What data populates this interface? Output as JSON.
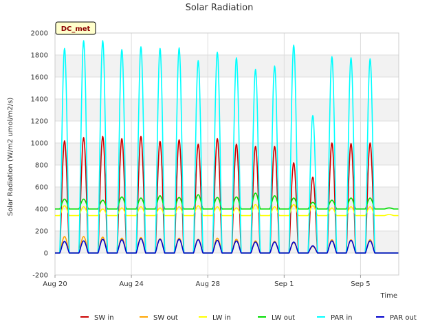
{
  "chart_data": {
    "type": "line",
    "title": "Solar Radiation",
    "xlabel": "Time",
    "ylabel": "Solar Radiation (W/m2 umol/m2/s)",
    "badge": "DC_met",
    "x_start": "2023-08-20",
    "x_end": "2023-09-07",
    "ylim": [
      -200,
      2000
    ],
    "yticks": [
      -200,
      0,
      200,
      400,
      600,
      800,
      1000,
      1200,
      1400,
      1600,
      1800,
      2000
    ],
    "xticks": [
      {
        "value": "2023-08-20",
        "label": "Aug 20"
      },
      {
        "value": "2023-08-24",
        "label": "Aug 24"
      },
      {
        "value": "2023-08-28",
        "label": "Aug 28"
      },
      {
        "value": "2023-09-01",
        "label": "Sep 1"
      },
      {
        "value": "2023-09-05",
        "label": "Sep 5"
      }
    ],
    "grid": true,
    "legend_position": "bottom",
    "days": [
      "2023-08-20",
      "2023-08-21",
      "2023-08-22",
      "2023-08-23",
      "2023-08-24",
      "2023-08-25",
      "2023-08-26",
      "2023-08-27",
      "2023-08-28",
      "2023-08-29",
      "2023-08-30",
      "2023-08-31",
      "2023-09-01",
      "2023-09-02",
      "2023-09-03",
      "2023-09-04",
      "2023-09-05",
      "2023-09-06"
    ],
    "series": [
      {
        "name": "SW in",
        "color": "#cc0000",
        "night": 0,
        "daily_peak": [
          1020,
          1050,
          1060,
          1040,
          1060,
          1015,
          1030,
          990,
          1040,
          990,
          970,
          970,
          820,
          690,
          1000,
          995,
          1000,
          0
        ]
      },
      {
        "name": "SW out",
        "color": "#ffa500",
        "night": 0,
        "daily_peak": [
          150,
          150,
          145,
          135,
          140,
          130,
          135,
          125,
          135,
          125,
          110,
          105,
          95,
          60,
          120,
          120,
          120,
          0
        ]
      },
      {
        "name": "LW in",
        "color": "#ffff00",
        "night": 340,
        "daily_peak": [
          430,
          420,
          400,
          410,
          420,
          410,
          420,
          430,
          420,
          410,
          440,
          420,
          440,
          430,
          410,
          420,
          420,
          350
        ]
      },
      {
        "name": "LW out",
        "color": "#00dd00",
        "night": 400,
        "daily_peak": [
          490,
          490,
          480,
          510,
          500,
          520,
          505,
          530,
          505,
          510,
          545,
          520,
          500,
          460,
          480,
          500,
          500,
          410
        ]
      },
      {
        "name": "PAR in",
        "color": "#00ffff",
        "night": 0,
        "daily_peak": [
          1860,
          1930,
          1930,
          1850,
          1875,
          1860,
          1865,
          1750,
          1825,
          1775,
          1670,
          1700,
          1890,
          1250,
          1785,
          1775,
          1765,
          0
        ]
      },
      {
        "name": "PAR out",
        "color": "#0000cc",
        "night": 0,
        "daily_peak": [
          105,
          110,
          125,
          120,
          130,
          125,
          125,
          120,
          115,
          110,
          100,
          100,
          100,
          65,
          110,
          115,
          110,
          0
        ]
      }
    ]
  }
}
